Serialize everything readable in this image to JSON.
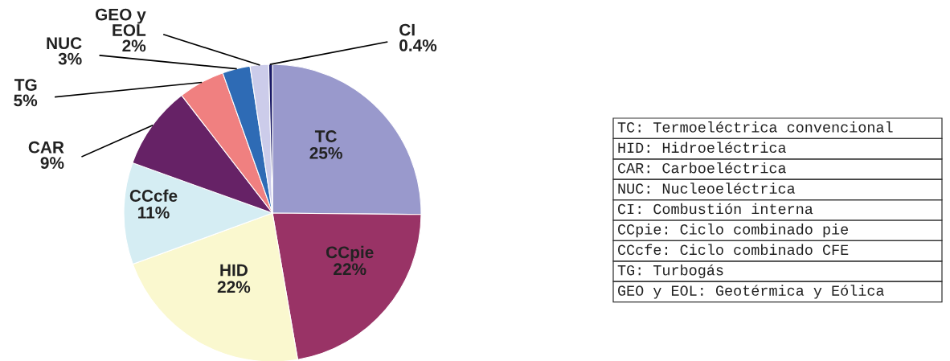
{
  "chart_data": {
    "type": "pie",
    "categories": [
      "TC",
      "CCpie",
      "HID",
      "CCcfe",
      "CAR",
      "TG",
      "NUC",
      "GEO y\nEOL",
      "CI"
    ],
    "values": [
      25,
      22,
      22,
      11,
      9,
      5,
      3,
      2,
      0.4
    ],
    "value_labels": [
      "25%",
      "22%",
      "22%",
      "11%",
      "9%",
      "5%",
      "3%",
      "2%",
      "0.4%"
    ],
    "colors": [
      "#9999cc",
      "#993366",
      "#faf8cf",
      "#d5edf3",
      "#662266",
      "#f08080",
      "#2e6bb5",
      "#ccccea",
      "#1a1a66"
    ],
    "annotations": [
      "TC: Termoeléctrica convencional",
      "HID: Hidroeléctrica",
      "CAR: Carboeléctrica",
      "NUC: Nucleoeléctrica",
      "CI: Combustión interna",
      "CCpie: Ciclo combinado pie",
      "CCcfe: Ciclo combinado CFE",
      "TG: Turbogás",
      "GEO y EOL: Geotérmica y Eólica"
    ]
  }
}
